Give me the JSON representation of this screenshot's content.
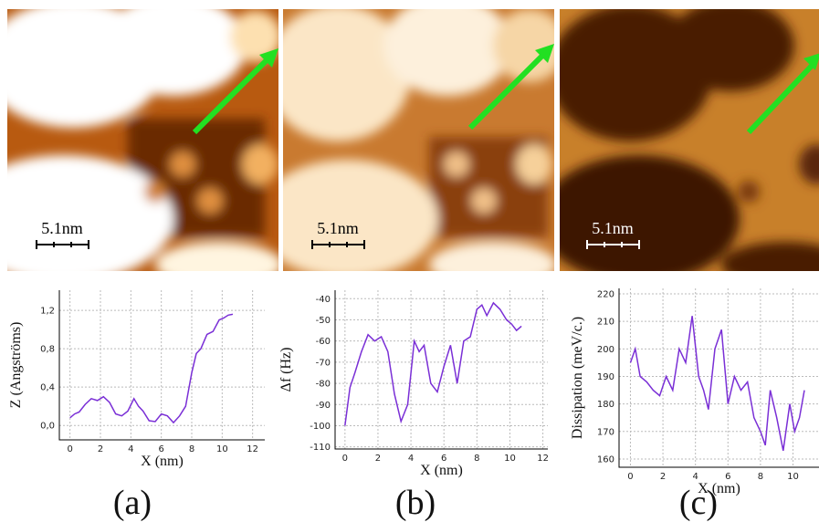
{
  "chart_data": [
    {
      "type": "line",
      "panel_label": "(a)",
      "scale_bar": "5.1nm",
      "xlabel": "X (nm)",
      "ylabel": "Z (Angströms)",
      "color": "#7a2fd6",
      "grid": true,
      "x": [
        0,
        0.3,
        0.6,
        1.0,
        1.4,
        1.8,
        2.2,
        2.6,
        3.0,
        3.4,
        3.8,
        4.2,
        4.5,
        4.8,
        5.2,
        5.6,
        6.0,
        6.4,
        6.8,
        7.2,
        7.6,
        8.0,
        8.3,
        8.6,
        9.0,
        9.4,
        9.8,
        10.1,
        10.4,
        10.7
      ],
      "values": [
        0.08,
        0.12,
        0.14,
        0.22,
        0.28,
        0.26,
        0.3,
        0.24,
        0.12,
        0.1,
        0.15,
        0.28,
        0.2,
        0.15,
        0.05,
        0.04,
        0.12,
        0.1,
        0.03,
        0.1,
        0.2,
        0.55,
        0.75,
        0.8,
        0.95,
        0.98,
        1.1,
        1.12,
        1.15,
        1.16
      ],
      "xlim": [
        -0.7,
        12.8
      ],
      "ylim": [
        -0.15,
        1.41
      ],
      "xticks": [
        0,
        2,
        4,
        6,
        8,
        10,
        12
      ],
      "yticks": [
        {
          "value": 0,
          "label": "0,0"
        },
        {
          "value": 0.4,
          "label": "0,4"
        },
        {
          "value": 0.8,
          "label": "0,8"
        },
        {
          "value": 1.2,
          "label": "1,2"
        }
      ]
    },
    {
      "type": "line",
      "panel_label": "(b)",
      "scale_bar": "5.1nm",
      "xlabel": "X (nm)",
      "ylabel": "Δf (Hz)",
      "color": "#7a2fd6",
      "grid": true,
      "x": [
        0,
        0.3,
        0.6,
        1.0,
        1.4,
        1.8,
        2.2,
        2.6,
        3.0,
        3.4,
        3.8,
        4.2,
        4.5,
        4.8,
        5.2,
        5.6,
        6.0,
        6.4,
        6.8,
        7.2,
        7.6,
        8.0,
        8.3,
        8.6,
        9.0,
        9.4,
        9.8,
        10.1,
        10.4,
        10.7
      ],
      "values": [
        -100,
        -82,
        -75,
        -65,
        -57,
        -60,
        -58,
        -65,
        -85,
        -98,
        -90,
        -60,
        -65,
        -62,
        -80,
        -84,
        -72,
        -62,
        -80,
        -60,
        -58,
        -45,
        -43,
        -48,
        -42,
        -45,
        -50,
        -52,
        -55,
        -53
      ],
      "xlim": [
        -0.6,
        12.3
      ],
      "ylim": [
        -111,
        -36
      ],
      "xticks": [
        0,
        2,
        4,
        6,
        8,
        10,
        12
      ],
      "yticks": [
        -110,
        -100,
        -90,
        -80,
        -70,
        -60,
        -50,
        -40
      ]
    },
    {
      "type": "line",
      "panel_label": "(c)",
      "scale_bar": "5.1nm",
      "xlabel": "X (nm)",
      "ylabel": "Dissipation (meV/c.)",
      "color": "#7a2fd6",
      "grid": true,
      "x": [
        0,
        0.3,
        0.6,
        1.0,
        1.4,
        1.8,
        2.2,
        2.6,
        3.0,
        3.4,
        3.8,
        4.2,
        4.5,
        4.8,
        5.2,
        5.6,
        6.0,
        6.4,
        6.8,
        7.2,
        7.6,
        8.0,
        8.3,
        8.6,
        9.0,
        9.4,
        9.8,
        10.1,
        10.4,
        10.7
      ],
      "values": [
        195,
        200,
        190,
        188,
        185,
        183,
        190,
        185,
        200,
        195,
        212,
        190,
        185,
        178,
        200,
        207,
        180,
        190,
        185,
        188,
        175,
        170,
        165,
        185,
        175,
        163,
        180,
        170,
        175,
        185
      ],
      "xlim": [
        -0.7,
        11.6
      ],
      "ylim": [
        157,
        222
      ],
      "xticks": [
        0,
        2,
        4,
        6,
        8,
        10
      ],
      "yticks": [
        160,
        170,
        180,
        190,
        200,
        210,
        220
      ]
    }
  ]
}
